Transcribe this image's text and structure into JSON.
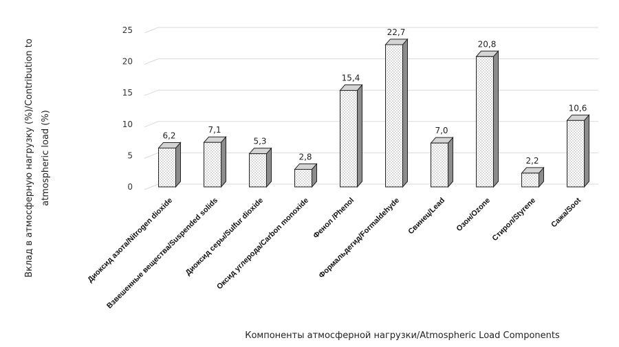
{
  "chart_data": {
    "type": "bar",
    "categories": [
      "Диоксид азота/Nitrogen dioxide",
      "Взвешенные вещества/Suspended solids",
      "Диоксид серы/Sulfur dioxide",
      "Оксид углерода/Carbon monoxide",
      "Фенол /Phenol",
      "Формальдегид/Formaldehyde",
      "Свинец/Lead",
      "Озон/Ozone",
      "Стирол/Styrene",
      "Сажа/Soot"
    ],
    "values": [
      6.2,
      7.1,
      5.3,
      2.8,
      15.4,
      22.7,
      7.0,
      20.8,
      2.2,
      10.6
    ],
    "data_labels": [
      "6,2",
      "7,1",
      "5,3",
      "2,8",
      "15,4",
      "22,7",
      "7,0",
      "20,8",
      "2,2",
      "10,6"
    ],
    "ylim": [
      0,
      25
    ],
    "yticks": [
      0,
      5,
      10,
      15,
      20,
      25
    ],
    "grid": true,
    "legend": "none",
    "xlabel": "Компоненты атмосферной нагрузки/Atmospheric Load Components",
    "ylabel_line1": "Вклад в атмосферную нагрузку (%)/Contribution to",
    "ylabel_line2": "atmospheric load (%)",
    "bar_style": "3d-dotted",
    "colors": {
      "front": "#ffffff",
      "side": "#8c8c8c",
      "top": "#d4d4d4",
      "grid": "#d9d9d9",
      "stroke": "#222222"
    }
  }
}
